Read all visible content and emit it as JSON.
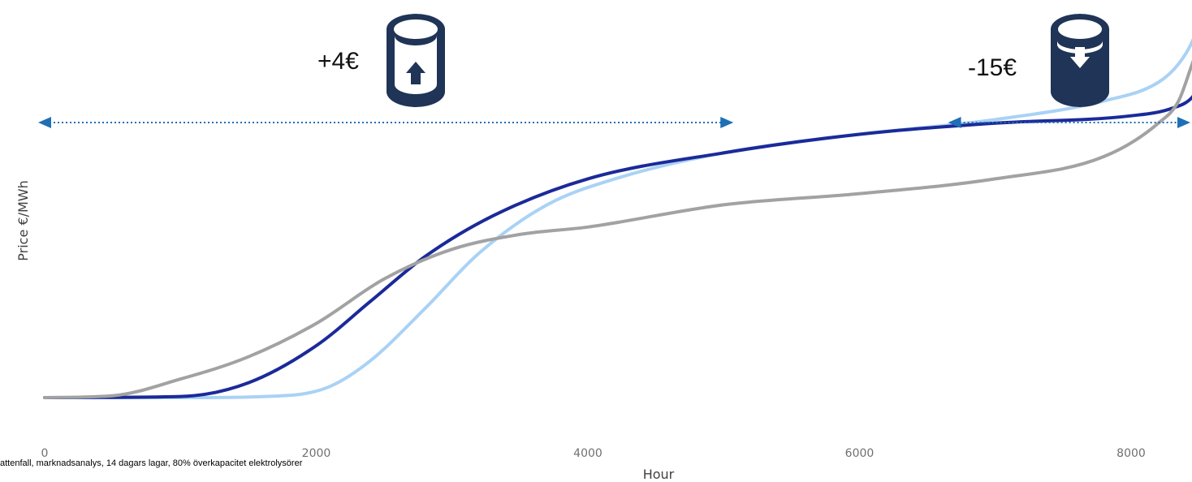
{
  "chart_data": {
    "type": "line",
    "title": "",
    "xlabel": "Hour",
    "ylabel": "Price €/MWh",
    "xlim": [
      0,
      8500
    ],
    "x_ticks": [
      0,
      2000,
      4000,
      6000,
      8000
    ],
    "x_tick_labels": [
      "0",
      "2000",
      "4000",
      "6000",
      "8000"
    ],
    "y_ticks_shown": false,
    "grid": false,
    "legend": "none",
    "series": [
      {
        "color": "#a9d2f5",
        "x": [
          0,
          1000,
          1800,
          2100,
          2400,
          2800,
          3200,
          3700,
          4200,
          5000,
          6000,
          7000,
          7800,
          8200,
          8350,
          8450,
          8500
        ],
        "y": [
          0,
          0,
          0.6,
          3,
          10,
          24,
          39,
          52,
          59,
          66,
          71,
          75,
          80,
          85,
          90,
          96,
          101
        ]
      },
      {
        "color": "#1b2a99",
        "x": [
          0,
          1000,
          1500,
          2000,
          2400,
          2800,
          3300,
          4000,
          5000,
          6000,
          7000,
          8000,
          8300,
          8450,
          8500
        ],
        "y": [
          0,
          0.3,
          4,
          14,
          26,
          38,
          49,
          59,
          66,
          71,
          74,
          76,
          78,
          81,
          84
        ]
      },
      {
        "color": "#a2a2a2",
        "x": [
          0,
          500,
          1000,
          1500,
          2000,
          2500,
          3000,
          3500,
          4000,
          5000,
          6000,
          7000,
          7800,
          8200,
          8350,
          8450,
          8500
        ],
        "y": [
          0,
          0.5,
          5,
          11,
          20,
          32,
          40,
          44,
          46,
          52,
          55,
          59,
          65,
          74,
          80,
          90,
          95
        ]
      }
    ],
    "annotations": [
      {
        "text": "+4€",
        "icon": "storage-fill-up-icon",
        "range": [
          0,
          5000
        ]
      },
      {
        "text": "-15€",
        "icon": "storage-discharge-icon",
        "range": [
          6700,
          8500
        ]
      }
    ],
    "footnote": "attenfall, marknadsanalys, 14 dagars lagar, 80% överkapacitet elektrolysörer"
  },
  "colors": {
    "arrow": "#1f6fb5",
    "cylinder": "#1f3456"
  }
}
